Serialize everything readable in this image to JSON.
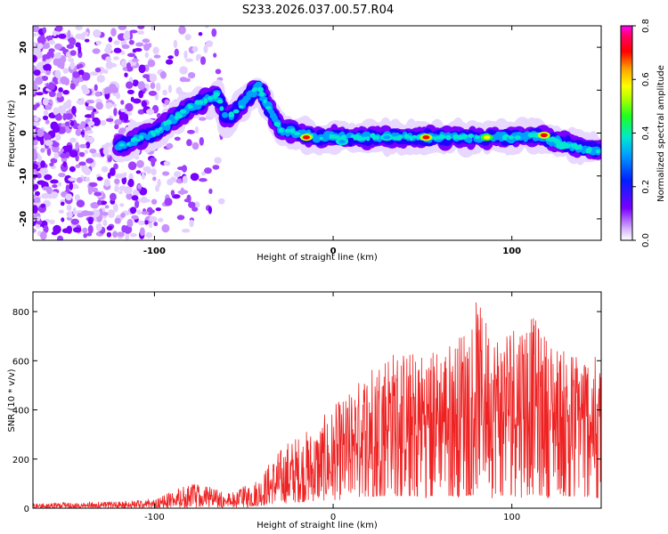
{
  "title": "S233.2026.037.00.57.R04",
  "chart_data": [
    {
      "type": "heatmap",
      "xlabel": "Height of straight line (km)",
      "ylabel": "Frequency (Hz)",
      "xlim": [
        -168,
        150
      ],
      "ylim": [
        -25,
        25
      ],
      "xticks": [
        -100,
        0,
        100
      ],
      "yticks": [
        -20,
        -10,
        0,
        10,
        20
      ],
      "colorbar": {
        "label": "Normalized spectral amplitude",
        "range": [
          0.0,
          0.8
        ],
        "ticks": [
          "0.0",
          "0.2",
          "0.4",
          "0.6",
          "0.8"
        ],
        "colormap": "rainbow (magenta at top through red, yellow, green, cyan, blue, violet to white at bottom)"
      },
      "ridge": {
        "description": "main spectral ridge: rises from about 0 Hz near -120 km to about +12 Hz near -40 km, then stays near 0 Hz up to 150 km, drifting to about -4 Hz at the end",
        "x": [
          -120,
          -100,
          -80,
          -65,
          -60,
          -50,
          -42,
          -35,
          -30,
          -20,
          -10,
          0,
          20,
          40,
          60,
          80,
          100,
          115,
          125,
          135,
          145,
          150
        ],
        "y": [
          -3,
          0,
          6,
          9,
          3,
          7,
          11,
          5,
          1,
          0,
          -1,
          -1,
          -1,
          -1,
          -1,
          -1,
          -1,
          -0.5,
          -2,
          -3,
          -4,
          -4
        ]
      },
      "peaks": [
        {
          "x": -15,
          "y": -1,
          "level": 0.72
        },
        {
          "x": 52,
          "y": -1,
          "level": 0.7
        },
        {
          "x": 86,
          "y": -1,
          "level": 0.68
        },
        {
          "x": 118,
          "y": -0.5,
          "level": 0.72
        },
        {
          "x": 128,
          "y": -3,
          "level": 0.5
        },
        {
          "x": 5,
          "y": -2,
          "level": 0.45
        },
        {
          "x": 30,
          "y": -1,
          "level": 0.45
        }
      ],
      "background_noise": {
        "description": "diffuse violet and lavender speckles across the whole frequency band for heights below about -60 km, densest below -100 km",
        "x_range": [
          -168,
          -60
        ]
      }
    },
    {
      "type": "line",
      "xlabel": "Height of straight line (km)",
      "ylabel": "SNR (10 * v/v)",
      "xlim": [
        -168,
        150
      ],
      "ylim": [
        0,
        880
      ],
      "xticks": [
        -100,
        0,
        100
      ],
      "yticks": [
        0,
        200,
        400,
        600,
        800
      ],
      "series": [
        {
          "color": "#ee2222",
          "description": "noisy SNR trace: about 10-40 from -168 to -70 km, 30-110 from -90 to -60 km, rising from about 50 to 250 between -45 and -20 km, then fluctuating between about 100 and 700 (peaks near 850-880 at 75-90 km) from 20 to 150 km",
          "envelope": {
            "x": [
              -168,
              -120,
              -100,
              -90,
              -80,
              -70,
              -60,
              -50,
              -45,
              -40,
              -35,
              -30,
              -25,
              -20,
              -10,
              0,
              10,
              20,
              30,
              40,
              50,
              60,
              70,
              80,
              90,
              100,
              110,
              120,
              130,
              140,
              150
            ],
            "low": [
              3,
              5,
              8,
              10,
              12,
              12,
              10,
              12,
              20,
              40,
              60,
              70,
              80,
              90,
              110,
              130,
              140,
              150,
              150,
              150,
              150,
              150,
              150,
              150,
              150,
              150,
              150,
              150,
              150,
              140,
              120
            ],
            "high": [
              22,
              28,
              40,
              70,
              100,
              95,
              60,
              90,
              110,
              140,
              200,
              240,
              280,
              300,
              340,
              420,
              480,
              580,
              650,
              640,
              640,
              660,
              700,
              850,
              720,
              770,
              800,
              700,
              640,
              650,
              600
            ]
          },
          "noise_seed": 233
        }
      ]
    }
  ]
}
